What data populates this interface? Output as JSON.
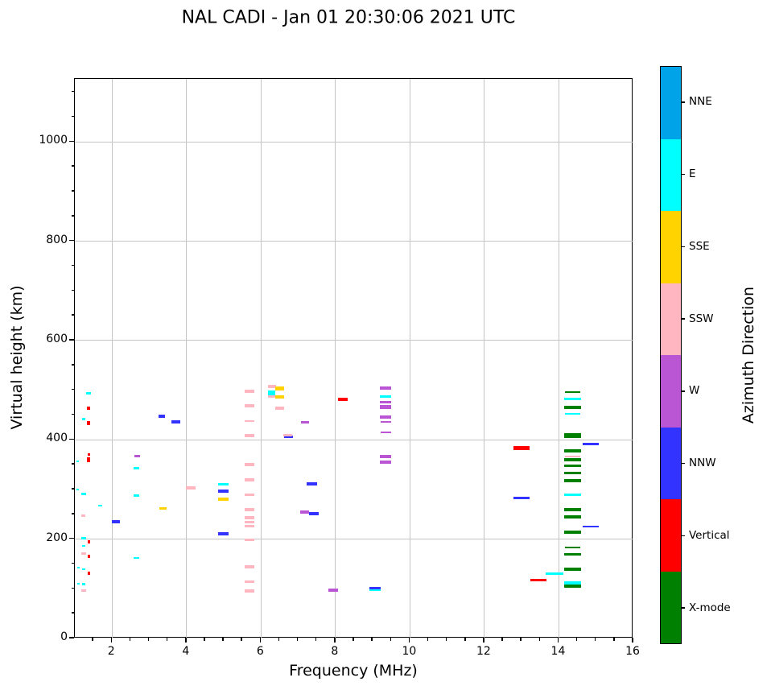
{
  "title": "NAL CADI - Jan 01 20:30:06 2021 UTC",
  "colorbar": {
    "label": "Azimuth Direction",
    "categories_bottom_to_top": [
      {
        "label": "X-mode",
        "color": "#008000"
      },
      {
        "label": "Vertical",
        "color": "#ff0000"
      },
      {
        "label": "NNW",
        "color": "#3333ff"
      },
      {
        "label": "W",
        "color": "#ba55d3"
      },
      {
        "label": "SSW",
        "color": "#ffb6c1"
      },
      {
        "label": "SSE",
        "color": "#ffd300"
      },
      {
        "label": "E",
        "color": "#00ffff"
      },
      {
        "label": "NNE",
        "color": "#00a2e8"
      }
    ]
  },
  "chart_data": {
    "type": "scatter",
    "marker": "horizontal-dash",
    "title": "NAL CADI - Jan 01 20:30:06 2021 UTC",
    "xlabel": "Frequency (MHz)",
    "ylabel": "Virtual height (km)",
    "xlim": [
      1,
      16
    ],
    "ylim": [
      0,
      1127
    ],
    "xticks": [
      2,
      4,
      6,
      8,
      10,
      12,
      14,
      16
    ],
    "yticks": [
      0,
      200,
      400,
      600,
      800,
      1000
    ],
    "x_minor_step": 0.5,
    "y_minor_step": 50,
    "grid": true,
    "legend_position": "right-colorbar",
    "point_format": "[freq_MHz, virtual_height_km, dash_width_MHz, dash_thickness_px]",
    "series": [
      {
        "name": "E",
        "color": "#00ffff",
        "points": [
          [
            1.37,
            494,
            0.13,
            3
          ],
          [
            1.24,
            442,
            0.1,
            3
          ],
          [
            1.08,
            356,
            0.07,
            2
          ],
          [
            1.08,
            300,
            0.07,
            2
          ],
          [
            1.24,
            291,
            0.12,
            3
          ],
          [
            1.68,
            267,
            0.1,
            2
          ],
          [
            1.24,
            202,
            0.12,
            3
          ],
          [
            1.24,
            187,
            0.1,
            2
          ],
          [
            1.09,
            143,
            0.07,
            2
          ],
          [
            1.24,
            140,
            0.1,
            2
          ],
          [
            1.09,
            111,
            0.07,
            2
          ],
          [
            1.24,
            110,
            0.1,
            3
          ],
          [
            2.66,
            343,
            0.15,
            3
          ],
          [
            2.66,
            288,
            0.15,
            3
          ],
          [
            2.66,
            162,
            0.15,
            2
          ],
          [
            4.99,
            310,
            0.28,
            3
          ],
          [
            6.29,
            497,
            0.2,
            4
          ],
          [
            6.29,
            491,
            0.2,
            3
          ],
          [
            9.06,
            98,
            0.3,
            3
          ],
          [
            9.35,
            487,
            0.3,
            3
          ],
          [
            13.88,
            131,
            0.48,
            3
          ],
          [
            14.37,
            483,
            0.45,
            3
          ],
          [
            14.37,
            452,
            0.4,
            2
          ],
          [
            14.37,
            290,
            0.45,
            3
          ],
          [
            14.37,
            111,
            0.45,
            5
          ]
        ]
      },
      {
        "name": "Vertical",
        "color": "#ff0000",
        "points": [
          [
            1.37,
            463,
            0.1,
            4
          ],
          [
            1.37,
            433,
            0.1,
            5
          ],
          [
            1.38,
            371,
            0.08,
            3
          ],
          [
            1.37,
            360,
            0.1,
            6
          ],
          [
            1.38,
            194,
            0.08,
            4
          ],
          [
            1.38,
            165,
            0.08,
            4
          ],
          [
            1.38,
            132,
            0.08,
            4
          ],
          [
            8.2,
            481,
            0.26,
            4
          ],
          [
            13.0,
            384,
            0.43,
            5
          ],
          [
            13.45,
            118,
            0.43,
            3
          ]
        ]
      },
      {
        "name": "NNW",
        "color": "#3333ff",
        "points": [
          [
            2.1,
            235,
            0.2,
            4
          ],
          [
            3.34,
            448,
            0.17,
            4
          ],
          [
            3.71,
            437,
            0.24,
            4
          ],
          [
            4.99,
            296,
            0.28,
            4
          ],
          [
            4.99,
            210,
            0.28,
            4
          ],
          [
            6.73,
            407,
            0.24,
            3
          ],
          [
            7.37,
            312,
            0.28,
            4
          ],
          [
            7.42,
            252,
            0.26,
            4
          ],
          [
            9.06,
            101,
            0.3,
            3
          ],
          [
            13.0,
            283,
            0.43,
            3
          ],
          [
            14.85,
            391,
            0.43,
            3
          ],
          [
            14.85,
            225,
            0.43,
            2
          ]
        ]
      },
      {
        "name": "W",
        "color": "#ba55d3",
        "points": [
          [
            2.67,
            367,
            0.15,
            3
          ],
          [
            7.18,
            436,
            0.22,
            3
          ],
          [
            7.17,
            255,
            0.24,
            4
          ],
          [
            7.93,
            97,
            0.26,
            4
          ],
          [
            9.35,
            505,
            0.3,
            4
          ],
          [
            9.35,
            476,
            0.3,
            3
          ],
          [
            9.35,
            466,
            0.3,
            5
          ],
          [
            9.35,
            446,
            0.3,
            4
          ],
          [
            9.35,
            436,
            0.28,
            2
          ],
          [
            9.35,
            415,
            0.28,
            2
          ],
          [
            9.35,
            366,
            0.3,
            4
          ],
          [
            9.35,
            355,
            0.3,
            4
          ]
        ]
      },
      {
        "name": "SSW",
        "color": "#ffb6c1",
        "points": [
          [
            1.23,
            248,
            0.12,
            3
          ],
          [
            1.24,
            171,
            0.12,
            3
          ],
          [
            1.24,
            96,
            0.12,
            3
          ],
          [
            4.12,
            304,
            0.26,
            4
          ],
          [
            5.69,
            498,
            0.28,
            4
          ],
          [
            5.69,
            469,
            0.28,
            4
          ],
          [
            5.69,
            438,
            0.24,
            2
          ],
          [
            5.69,
            409,
            0.28,
            4
          ],
          [
            5.69,
            351,
            0.28,
            4
          ],
          [
            5.69,
            319,
            0.28,
            4
          ],
          [
            5.69,
            289,
            0.24,
            3
          ],
          [
            5.69,
            259,
            0.28,
            4
          ],
          [
            5.69,
            244,
            0.28,
            4
          ],
          [
            5.69,
            234,
            0.28,
            3
          ],
          [
            5.69,
            226,
            0.28,
            3
          ],
          [
            5.69,
            199,
            0.26,
            3
          ],
          [
            5.69,
            144,
            0.28,
            4
          ],
          [
            5.69,
            115,
            0.28,
            3
          ],
          [
            5.69,
            95,
            0.28,
            4
          ],
          [
            6.29,
            508,
            0.22,
            4
          ],
          [
            6.29,
            487,
            0.22,
            3
          ],
          [
            6.5,
            463,
            0.24,
            4
          ],
          [
            6.72,
            409,
            0.24,
            3
          ],
          [
            14.37,
            366,
            0.4,
            2
          ]
        ]
      },
      {
        "name": "SSE",
        "color": "#ffd300",
        "points": [
          [
            3.36,
            262,
            0.2,
            3
          ],
          [
            4.99,
            281,
            0.28,
            4
          ],
          [
            6.5,
            504,
            0.24,
            5
          ],
          [
            6.5,
            487,
            0.24,
            4
          ]
        ]
      },
      {
        "name": "X-mode",
        "color": "#008000",
        "points": [
          [
            14.37,
            497,
            0.42,
            2
          ],
          [
            14.37,
            466,
            0.45,
            4
          ],
          [
            14.37,
            409,
            0.45,
            6
          ],
          [
            14.37,
            378,
            0.45,
            4
          ],
          [
            14.37,
            360,
            0.45,
            4
          ],
          [
            14.37,
            348,
            0.45,
            3
          ],
          [
            14.37,
            333,
            0.45,
            3
          ],
          [
            14.37,
            318,
            0.45,
            4
          ],
          [
            14.37,
            260,
            0.45,
            4
          ],
          [
            14.37,
            245,
            0.45,
            4
          ],
          [
            14.37,
            214,
            0.45,
            4
          ],
          [
            14.37,
            183,
            0.42,
            2
          ],
          [
            14.37,
            169,
            0.45,
            3
          ],
          [
            14.37,
            140,
            0.45,
            4
          ],
          [
            14.37,
            106,
            0.45,
            4
          ]
        ]
      },
      {
        "name": "NNE",
        "color": "#00a2e8",
        "points": []
      }
    ]
  }
}
